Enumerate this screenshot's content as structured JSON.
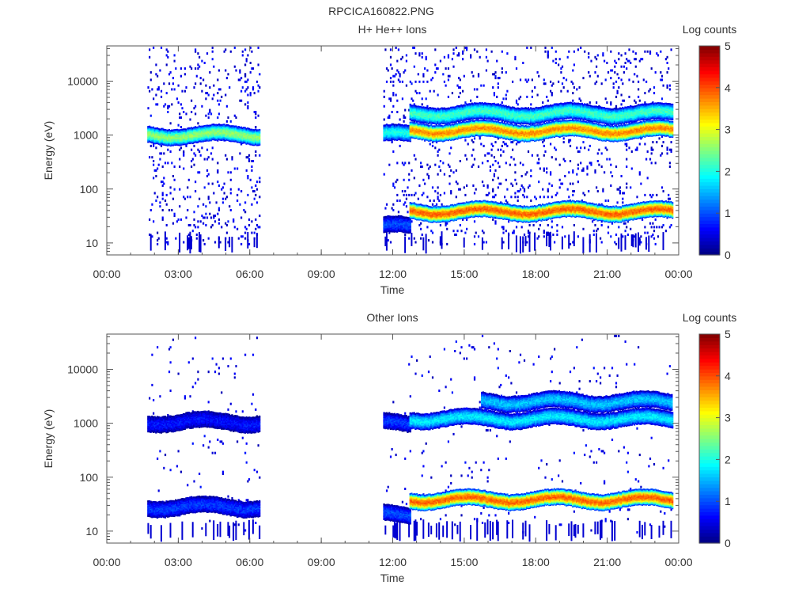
{
  "title": "RPCICA160822.PNG",
  "colorbar": {
    "label": "Log counts",
    "ticks": [
      0,
      1,
      2,
      3,
      4,
      5
    ],
    "range": [
      0,
      5
    ],
    "colormap": [
      "#00007f",
      "#0000ff",
      "#007fff",
      "#00ffff",
      "#7fff7f",
      "#ffff00",
      "#ff7f00",
      "#ff0000",
      "#7f0000"
    ]
  },
  "chart_data": [
    {
      "type": "heatmap",
      "title": "H+ He++ Ions",
      "xlabel": "Time",
      "ylabel": "Energy (eV)",
      "x_ticks": [
        "00:00",
        "03:00",
        "06:00",
        "09:00",
        "12:00",
        "15:00",
        "18:00",
        "21:00",
        "00:00"
      ],
      "xlim_hours": [
        0,
        24
      ],
      "y_scale": "log",
      "ylim": [
        6,
        45000
      ],
      "y_ticks": [
        "10",
        "100",
        "1000",
        "10000"
      ],
      "y_tick_values": [
        10,
        100,
        1000,
        10000
      ],
      "data_gaps_hours": [
        [
          0,
          1.7
        ],
        [
          6.4,
          11.6
        ],
        [
          23.7,
          24
        ]
      ],
      "bands": [
        {
          "name": "main ion band",
          "t_start": 1.7,
          "t_end": 6.4,
          "energy_eV": 1000,
          "log_counts": 2.6
        },
        {
          "name": "main ion band",
          "t_start": 11.6,
          "t_end": 12.7,
          "energy_eV": 1000,
          "log_counts": 2.0
        },
        {
          "name": "main ion band",
          "t_start": 12.7,
          "t_end": 23.7,
          "energy_eV": 1200,
          "log_counts": 3.7
        },
        {
          "name": "upper band",
          "t_start": 12.7,
          "t_end": 23.7,
          "energy_eV": 2500,
          "log_counts": 2.2
        },
        {
          "name": "low-energy band",
          "t_start": 11.6,
          "t_end": 12.7,
          "energy_eV": 20,
          "log_counts": 1.0
        },
        {
          "name": "low-energy band",
          "t_start": 12.7,
          "t_end": 23.7,
          "energy_eV": 38,
          "log_counts": 3.9
        }
      ],
      "scatter_density": "high"
    },
    {
      "type": "heatmap",
      "title": "Other Ions",
      "xlabel": "Time",
      "ylabel": "Energy (eV)",
      "x_ticks": [
        "00:00",
        "03:00",
        "06:00",
        "09:00",
        "12:00",
        "15:00",
        "18:00",
        "21:00",
        "00:00"
      ],
      "xlim_hours": [
        0,
        24
      ],
      "y_scale": "log",
      "ylim": [
        6,
        45000
      ],
      "y_ticks": [
        "10",
        "100",
        "1000",
        "10000"
      ],
      "y_tick_values": [
        10,
        100,
        1000,
        10000
      ],
      "data_gaps_hours": [
        [
          0,
          1.7
        ],
        [
          6.4,
          11.6
        ],
        [
          23.7,
          24
        ]
      ],
      "bands": [
        {
          "name": "1 keV band",
          "t_start": 1.7,
          "t_end": 6.4,
          "energy_eV": 1050,
          "log_counts": 0.7
        },
        {
          "name": "low-energy band",
          "t_start": 1.7,
          "t_end": 6.4,
          "energy_eV": 28,
          "log_counts": 0.9
        },
        {
          "name": "1 keV band",
          "t_start": 11.6,
          "t_end": 12.7,
          "energy_eV": 1000,
          "log_counts": 0.9
        },
        {
          "name": "1 keV band",
          "t_start": 12.7,
          "t_end": 23.7,
          "energy_eV": 1200,
          "log_counts": 1.8
        },
        {
          "name": "upper band",
          "t_start": 15.7,
          "t_end": 23.7,
          "energy_eV": 2500,
          "log_counts": 1.6
        },
        {
          "name": "low-energy band",
          "t_start": 11.6,
          "t_end": 12.7,
          "energy_eV": 20,
          "log_counts": 1.0
        },
        {
          "name": "low-energy band",
          "t_start": 12.7,
          "t_end": 23.7,
          "energy_eV": 38,
          "log_counts": 3.9
        }
      ],
      "scatter_density": "low"
    }
  ]
}
